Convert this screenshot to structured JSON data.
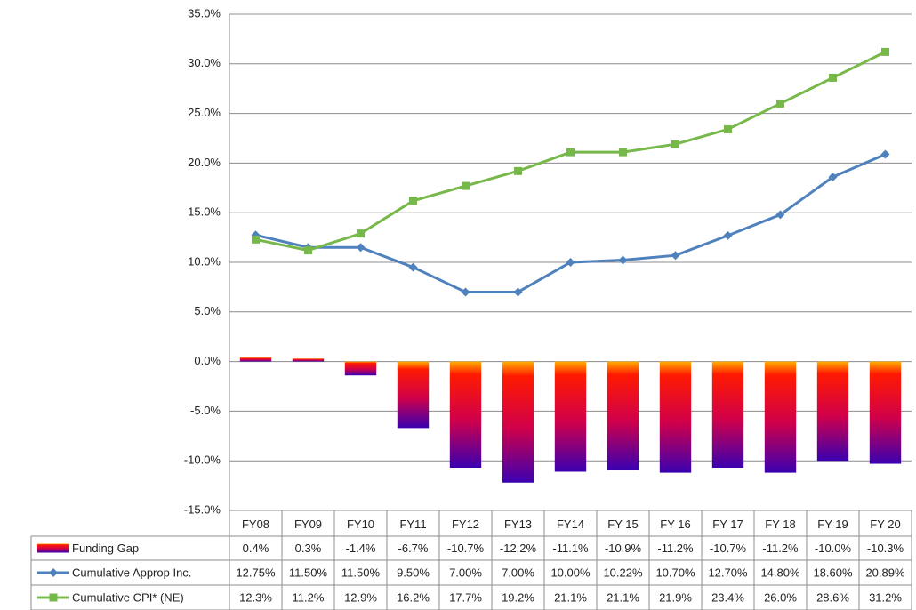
{
  "chart_data": {
    "type": "combo",
    "categories": [
      "FY08",
      "FY09",
      "FY10",
      "FY11",
      "FY12",
      "FY13",
      "FY14",
      "FY 15",
      "FY 16",
      "FY 17",
      "FY 18",
      "FY 19",
      "FY 20"
    ],
    "series": [
      {
        "name": "Funding Gap",
        "type": "bar",
        "color": "#ff1a00",
        "values": [
          0.4,
          0.3,
          -1.4,
          -6.7,
          -10.7,
          -12.2,
          -11.1,
          -10.9,
          -11.2,
          -10.7,
          -11.2,
          -10.0,
          -10.3
        ],
        "value_labels": [
          "0.4%",
          "0.3%",
          "-1.4%",
          "-6.7%",
          "-10.7%",
          "-12.2%",
          "-11.1%",
          "-10.9%",
          "-11.2%",
          "-10.7%",
          "-11.2%",
          "-10.0%",
          "-10.3%"
        ]
      },
      {
        "name": "Cumulative Approp Inc.",
        "type": "line",
        "marker": "diamond",
        "color": "#4f81bd",
        "values": [
          12.75,
          11.5,
          11.5,
          9.5,
          7.0,
          7.0,
          10.0,
          10.22,
          10.7,
          12.7,
          14.8,
          18.6,
          20.89
        ],
        "value_labels": [
          "12.75%",
          "11.50%",
          "11.50%",
          "9.50%",
          "7.00%",
          "7.00%",
          "10.00%",
          "10.22%",
          "10.70%",
          "12.70%",
          "14.80%",
          "18.60%",
          "20.89%"
        ]
      },
      {
        "name": "Cumulative CPI* (NE)",
        "type": "line",
        "marker": "square",
        "color": "#77b84a",
        "values": [
          12.3,
          11.2,
          12.9,
          16.2,
          17.7,
          19.2,
          21.1,
          21.1,
          21.9,
          23.4,
          26.0,
          28.6,
          31.2
        ],
        "value_labels": [
          "12.3%",
          "11.2%",
          "12.9%",
          "16.2%",
          "17.7%",
          "19.2%",
          "21.1%",
          "21.1%",
          "21.9%",
          "23.4%",
          "26.0%",
          "28.6%",
          "31.2%"
        ]
      }
    ],
    "ylim": [
      -15,
      35
    ],
    "yticks": [
      {
        "value": -15,
        "label": "-15.0%"
      },
      {
        "value": -10,
        "label": "-10.0%"
      },
      {
        "value": -5,
        "label": "-5.0%"
      },
      {
        "value": 0,
        "label": "0.0%"
      },
      {
        "value": 5,
        "label": "5.0%"
      },
      {
        "value": 10,
        "label": "10.0%"
      },
      {
        "value": 15,
        "label": "15.0%"
      },
      {
        "value": 20,
        "label": "20.0%"
      },
      {
        "value": 25,
        "label": "25.0%"
      },
      {
        "value": 30,
        "label": "30.0%"
      },
      {
        "value": 35,
        "label": "35.0%"
      }
    ],
    "grid": true
  }
}
